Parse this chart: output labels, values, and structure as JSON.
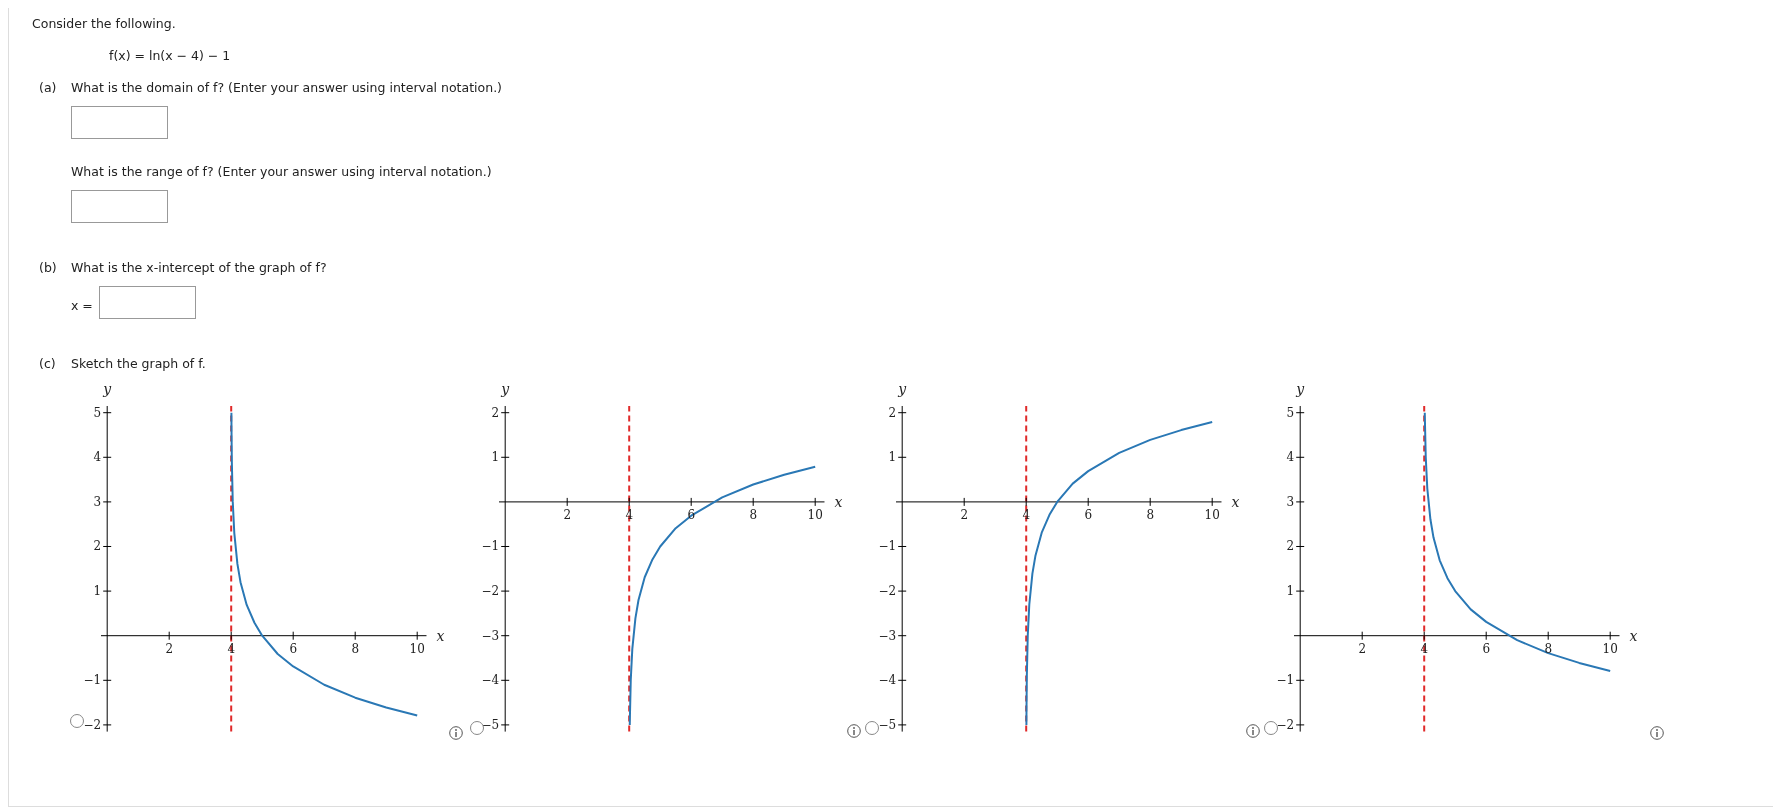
{
  "chart_data": [
    {
      "type": "other",
      "annotations": [
        "Consider the following.",
        "f(x) = ln(x − 4) − 1",
        "(a)",
        "What is the domain of f? (Enter your answer using interval notation.)",
        "What is the range of f? (Enter your answer using interval notation.)",
        "(b)",
        "What is the x-intercept of the graph of f?",
        "x =",
        "(c)",
        "Sketch the graph of f."
      ]
    },
    {
      "type": "line",
      "xlabel": "x",
      "ylabel": "y",
      "x": [
        4.0067,
        4.01,
        4.02,
        4.05,
        4.1,
        4.2,
        4.3,
        4.5,
        4.75,
        5,
        5.5,
        6,
        7,
        8,
        9,
        10
      ],
      "series": [
        {
          "color": "#2a78b5",
          "values": [
            5,
            4.61,
            3.91,
            3,
            2.3,
            1.61,
            1.2,
            0.69,
            0.29,
            0,
            -0.41,
            -0.69,
            -1.1,
            -1.39,
            -1.61,
            -1.79
          ]
        }
      ],
      "xlim": [
        -0.2,
        10.3
      ],
      "ylim": [
        -2.15,
        5.15
      ],
      "xticks": [
        2,
        4,
        6,
        8,
        10
      ],
      "yticks": [
        -2,
        -1,
        1,
        2,
        3,
        4,
        5
      ],
      "ref_lines": [
        {
          "axis": "x",
          "value": 4,
          "color": "#e02a2a",
          "line_style": "dashed"
        }
      ],
      "grid": false,
      "legend": false,
      "marker": "none",
      "line_style": "solid"
    },
    {
      "type": "line",
      "xlabel": "x",
      "ylabel": "y",
      "x": [
        4.0183,
        4.02,
        4.05,
        4.1,
        4.2,
        4.3,
        4.5,
        4.75,
        5,
        5.5,
        6,
        7,
        8,
        9,
        10
      ],
      "series": [
        {
          "color": "#2a78b5",
          "values": [
            -5,
            -4.91,
            -4,
            -3.3,
            -2.61,
            -2.2,
            -1.69,
            -1.29,
            -1,
            -0.59,
            -0.31,
            0.1,
            0.39,
            0.61,
            0.79
          ]
        }
      ],
      "xlim": [
        -0.2,
        10.3
      ],
      "ylim": [
        -5.15,
        2.15
      ],
      "xticks": [
        2,
        4,
        6,
        8,
        10
      ],
      "yticks": [
        -5,
        -4,
        -3,
        -2,
        -1,
        1,
        2
      ],
      "ref_lines": [
        {
          "axis": "x",
          "value": 4,
          "color": "#e02a2a",
          "line_style": "dashed"
        }
      ],
      "grid": false,
      "legend": false,
      "marker": "none",
      "line_style": "solid"
    },
    {
      "type": "line",
      "xlabel": "x",
      "ylabel": "y",
      "x": [
        4.0067,
        4.01,
        4.02,
        4.05,
        4.1,
        4.2,
        4.3,
        4.5,
        4.75,
        5,
        5.5,
        6,
        7,
        8,
        9,
        10
      ],
      "series": [
        {
          "color": "#2a78b5",
          "values": [
            -5,
            -4.61,
            -3.91,
            -3,
            -2.3,
            -1.61,
            -1.2,
            -0.69,
            -0.29,
            0,
            0.41,
            0.69,
            1.1,
            1.39,
            1.61,
            1.79
          ]
        }
      ],
      "xlim": [
        -0.2,
        10.3
      ],
      "ylim": [
        -5.15,
        2.15
      ],
      "xticks": [
        2,
        4,
        6,
        8,
        10
      ],
      "yticks": [
        -5,
        -4,
        -3,
        -2,
        -1,
        1,
        2
      ],
      "ref_lines": [
        {
          "axis": "x",
          "value": 4,
          "color": "#e02a2a",
          "line_style": "dashed"
        }
      ],
      "grid": false,
      "legend": false,
      "marker": "none",
      "line_style": "solid"
    },
    {
      "type": "line",
      "xlabel": "x",
      "ylabel": "y",
      "x": [
        4.0183,
        4.02,
        4.05,
        4.1,
        4.2,
        4.3,
        4.5,
        4.75,
        5,
        5.5,
        6,
        7,
        8,
        9,
        10
      ],
      "series": [
        {
          "color": "#2a78b5",
          "values": [
            5,
            4.91,
            4,
            3.3,
            2.61,
            2.2,
            1.69,
            1.29,
            1,
            0.59,
            0.31,
            -0.1,
            -0.39,
            -0.61,
            -0.79
          ]
        }
      ],
      "xlim": [
        -0.2,
        10.3
      ],
      "ylim": [
        -2.15,
        5.15
      ],
      "xticks": [
        2,
        4,
        6,
        8,
        10
      ],
      "yticks": [
        -2,
        -1,
        1,
        2,
        3,
        4,
        5
      ],
      "ref_lines": [
        {
          "axis": "x",
          "value": 4,
          "color": "#e02a2a",
          "line_style": "dashed"
        }
      ],
      "grid": false,
      "legend": false,
      "marker": "none",
      "line_style": "solid"
    }
  ]
}
